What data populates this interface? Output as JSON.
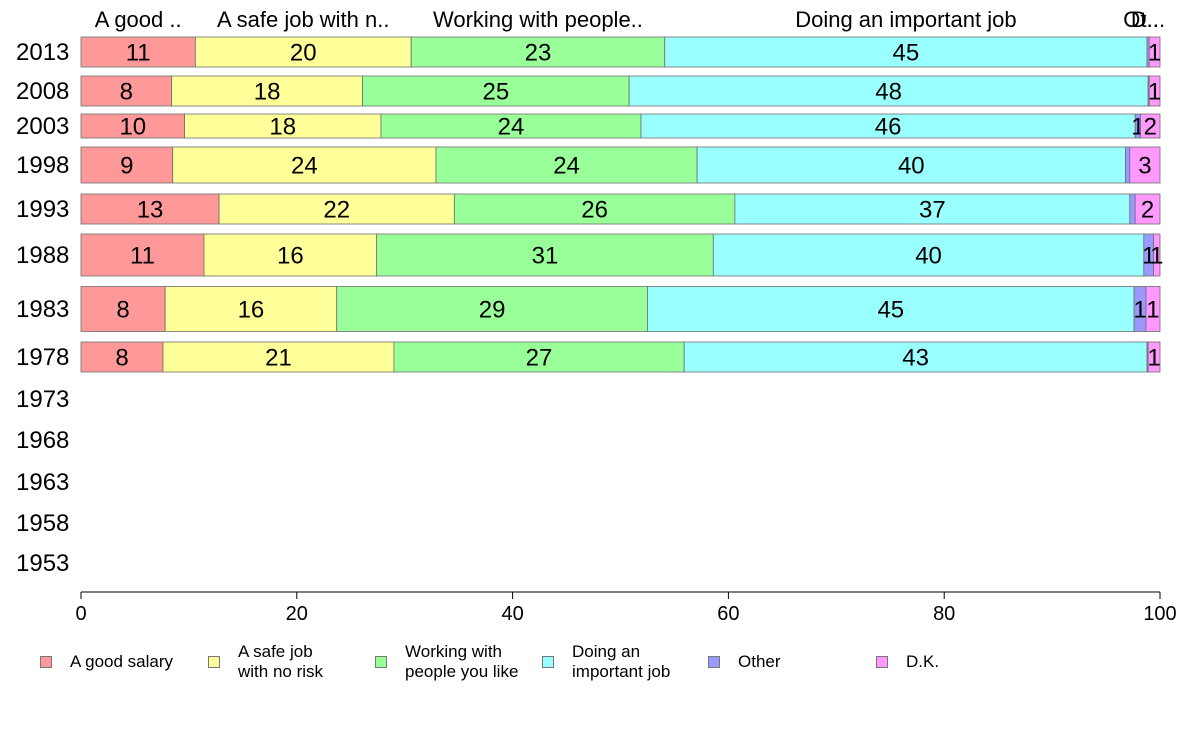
{
  "chart_data": {
    "type": "bar",
    "orientation": "horizontal",
    "stacked": true,
    "categories": [
      "2013",
      "2008",
      "2003",
      "1998",
      "1993",
      "1988",
      "1983",
      "1978",
      "1973",
      "1968",
      "1963",
      "1958",
      "1953"
    ],
    "top_labels": [
      "A good ..",
      "A safe job with n..",
      "Working with people..",
      "Doing an important job",
      "Ot..",
      "D..."
    ],
    "series": [
      {
        "name": "A good salary",
        "legend": "A good salary",
        "color": "#ff9999",
        "values": [
          10.6,
          8.4,
          9.6,
          8.5,
          12.8,
          11.4,
          7.8,
          7.6,
          null,
          null,
          null,
          null,
          null
        ],
        "labels": [
          "11",
          "8",
          "10",
          "9",
          "13",
          "11",
          "8",
          "8",
          "",
          "",
          "",
          "",
          ""
        ]
      },
      {
        "name": "A safe job with no risk",
        "legend": "A safe job\nwith no risk",
        "color": "#ffff99",
        "values": [
          20.0,
          17.7,
          18.2,
          24.4,
          21.8,
          16.0,
          15.9,
          21.4,
          null,
          null,
          null,
          null,
          null
        ],
        "labels": [
          "20",
          "18",
          "18",
          "24",
          "22",
          "16",
          "16",
          "21",
          "",
          "",
          "",
          "",
          ""
        ]
      },
      {
        "name": "Working with people you like",
        "legend": "Working with\npeople you like",
        "color": "#99ff99",
        "values": [
          23.5,
          24.7,
          24.1,
          24.2,
          26.0,
          31.2,
          28.8,
          26.9,
          null,
          null,
          null,
          null,
          null
        ],
        "labels": [
          "23",
          "25",
          "24",
          "24",
          "26",
          "31",
          "29",
          "27",
          "",
          "",
          "",
          "",
          ""
        ]
      },
      {
        "name": "Doing an important job",
        "legend": "Doing an\nimportant job",
        "color": "#99ffff",
        "values": [
          44.7,
          48.1,
          45.8,
          39.7,
          36.6,
          39.9,
          45.1,
          42.9,
          null,
          null,
          null,
          null,
          null
        ],
        "labels": [
          "45",
          "48",
          "46",
          "40",
          "37",
          "40",
          "45",
          "43",
          "",
          "",
          "",
          "",
          ""
        ]
      },
      {
        "name": "Other",
        "legend": "Other",
        "color": "#9999ff",
        "values": [
          0.2,
          0.1,
          0.5,
          0.4,
          0.5,
          0.9,
          1.1,
          0.1,
          null,
          null,
          null,
          null,
          null
        ],
        "labels": [
          "",
          "",
          "1",
          "",
          "",
          "1",
          "1",
          "",
          "",
          "",
          "",
          "",
          ""
        ]
      },
      {
        "name": "D.K.",
        "legend": "D.K.",
        "color": "#ff99ff",
        "values": [
          1.0,
          1.0,
          1.8,
          2.8,
          2.3,
          0.6,
          1.3,
          1.1,
          null,
          null,
          null,
          null,
          null
        ],
        "labels": [
          "1",
          "1",
          "2",
          "3",
          "2",
          "1",
          "1",
          "1",
          "",
          "",
          "",
          "",
          ""
        ]
      }
    ],
    "row_heights": [
      1.0,
      1.0,
      0.8,
      1.2,
      1.0,
      1.4,
      1.5,
      1.0,
      0,
      0,
      0,
      0,
      0
    ],
    "xlim": [
      0,
      100
    ],
    "xticks": [
      0,
      20,
      40,
      60,
      80,
      100
    ],
    "grid": false,
    "legend_position": "bottom"
  }
}
